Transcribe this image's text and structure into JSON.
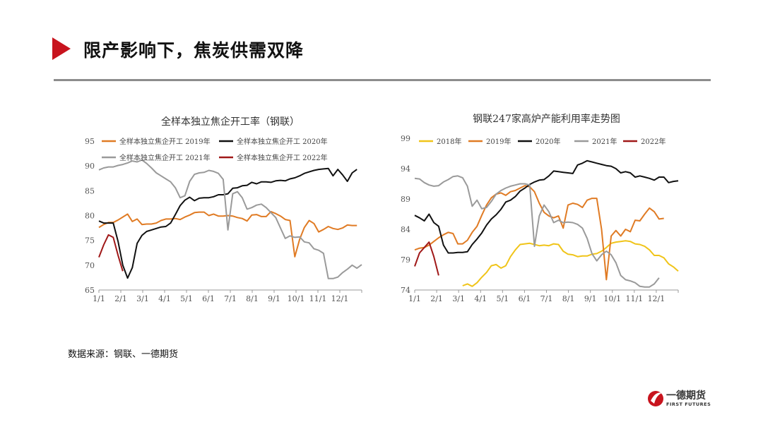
{
  "header": {
    "title": "限产影响下，焦炭供需双降"
  },
  "source_note": "数据来源：钢联、一德期货",
  "logo": {
    "name": "一德期货",
    "name_en": "FIRST FUTURES"
  },
  "colors": {
    "accent": "#c8141e"
  },
  "chart_data": [
    {
      "type": "line",
      "title": "全样本独立焦企开工率（钢联）",
      "ylim": [
        65,
        95
      ],
      "yticks": [
        65,
        70,
        75,
        80,
        85,
        90,
        95
      ],
      "xticks": [
        "1/1",
        "2/1",
        "3/1",
        "4/1",
        "5/1",
        "6/1",
        "7/1",
        "8/1",
        "9/1",
        "10/1",
        "11/1",
        "12/1"
      ],
      "grid": false,
      "legend": "top",
      "series": [
        {
          "name": "全样本独立焦企开工  2019年",
          "color": "#e07b24",
          "values": [
            77.6,
            78.2,
            78.6,
            78.6,
            79.1,
            79.7,
            80.3,
            78.8,
            79.3,
            78.2,
            78.3,
            78.3,
            78.5,
            79.0,
            79.3,
            79.3,
            79.4,
            79.2,
            79.7,
            80.1,
            80.6,
            80.7,
            80.7,
            80.0,
            80.3,
            79.9,
            79.9,
            80.0,
            79.9,
            79.6,
            79.4,
            78.9,
            80.1,
            80.2,
            79.8,
            79.8,
            80.8,
            80.4,
            79.9,
            79.2,
            79.0,
            71.7,
            75.2,
            77.6,
            79.0,
            78.4,
            76.7,
            77.2,
            77.8,
            77.4,
            77.2,
            77.5,
            78.1,
            78.0,
            78.0
          ]
        },
        {
          "name": "全样本独立焦企开工  2020年",
          "color": "#111111",
          "values": [
            78.9,
            78.5,
            78.5,
            78.5,
            74.8,
            70.0,
            67.4,
            69.5,
            74.4,
            76.0,
            76.8,
            77.1,
            77.4,
            77.7,
            77.8,
            78.5,
            80.2,
            82.0,
            83.1,
            83.7,
            83.0,
            83.5,
            83.6,
            83.6,
            83.8,
            84.2,
            84.2,
            84.4,
            85.5,
            85.6,
            86.0,
            86.1,
            86.7,
            86.4,
            86.8,
            86.8,
            86.7,
            87.0,
            87.1,
            87.0,
            87.4,
            87.6,
            88.0,
            88.5,
            88.8,
            89.1,
            89.3,
            89.4,
            89.5,
            88.0,
            89.3,
            88.2,
            86.9,
            88.6,
            89.3
          ]
        },
        {
          "name": "全样本独立焦企开工  2021年",
          "color": "#9a9a9a",
          "values": [
            89.2,
            89.6,
            89.8,
            89.8,
            90.1,
            90.3,
            90.6,
            91.0,
            90.8,
            91.2,
            90.5,
            89.6,
            88.6,
            88.0,
            87.4,
            86.8,
            85.6,
            83.6,
            84.0,
            86.9,
            88.3,
            88.6,
            88.7,
            89.1,
            88.9,
            88.5,
            87.3,
            77.1,
            84.4,
            84.8,
            83.6,
            81.3,
            81.6,
            82.1,
            82.3,
            81.6,
            80.6,
            79.6,
            77.5,
            75.4,
            75.9,
            75.6,
            75.7,
            74.7,
            74.5,
            73.3,
            73.0,
            72.4,
            67.3,
            67.3,
            67.6,
            68.5,
            69.2,
            70.0,
            69.4,
            70.1
          ]
        },
        {
          "name": "全样本独立焦企开工  2022年",
          "color": "#a01818",
          "values": [
            71.6,
            74.1,
            76.1,
            75.6,
            72.0,
            68.8
          ]
        }
      ]
    },
    {
      "type": "line",
      "title": "钢联247家高炉产能利用率走势图",
      "ylim": [
        74,
        99
      ],
      "yticks": [
        74,
        79,
        84,
        89,
        94,
        99
      ],
      "xticks": [
        "1/1",
        "2/1",
        "3/1",
        "4/1",
        "5/1",
        "6/1",
        "7/1",
        "8/1",
        "9/1",
        "10/1",
        "11/1",
        "12/1"
      ],
      "grid": false,
      "legend": "top",
      "series": [
        {
          "name": "2018年",
          "color": "#f0c419",
          "values": [
            null,
            null,
            null,
            null,
            null,
            null,
            null,
            null,
            null,
            null,
            74.7,
            75.0,
            74.6,
            75.2,
            76.1,
            76.9,
            78.0,
            78.2,
            77.6,
            78.0,
            79.5,
            80.6,
            81.5,
            81.6,
            81.7,
            81.5,
            81.3,
            81.4,
            81.3,
            81.6,
            81.5,
            80.4,
            79.9,
            79.8,
            79.5,
            79.6,
            79.6,
            79.9,
            80.0,
            80.4,
            81.0,
            81.7,
            81.9,
            82.0,
            82.1,
            82.0,
            81.6,
            81.5,
            81.2,
            80.6,
            79.7,
            79.7,
            79.3,
            78.3,
            77.8,
            77.1
          ]
        },
        {
          "name": "2019年",
          "color": "#e07b24",
          "values": [
            80.6,
            80.9,
            81.0,
            81.4,
            82.0,
            82.6,
            83.1,
            83.5,
            83.3,
            81.6,
            81.6,
            82.2,
            83.5,
            84.5,
            86.3,
            88.0,
            89.2,
            89.8,
            90.0,
            89.6,
            90.2,
            90.4,
            90.8,
            91.2,
            91.0,
            90.2,
            88.3,
            86.8,
            86.2,
            85.9,
            86.2,
            84.2,
            88.0,
            88.3,
            88.1,
            87.6,
            88.8,
            89.1,
            89.1,
            84.0,
            75.7,
            82.9,
            83.8,
            82.9,
            84.0,
            83.6,
            85.5,
            85.4,
            86.5,
            87.5,
            86.9,
            85.7,
            85.8
          ]
        },
        {
          "name": "2020年",
          "color": "#111111",
          "values": [
            86.3,
            85.9,
            85.4,
            86.5,
            85.1,
            84.5,
            81.4,
            80.1,
            80.1,
            80.2,
            80.2,
            80.3,
            81.5,
            82.4,
            83.4,
            84.7,
            85.7,
            86.4,
            87.3,
            88.5,
            88.8,
            89.4,
            90.3,
            90.8,
            91.4,
            91.8,
            92.1,
            92.2,
            92.8,
            93.6,
            93.5,
            93.4,
            93.3,
            93.2,
            94.6,
            94.9,
            95.3,
            95.1,
            94.9,
            94.7,
            94.5,
            94.4,
            94.0,
            93.3,
            93.5,
            93.3,
            92.6,
            92.8,
            92.6,
            92.4,
            92.1,
            92.6,
            92.6,
            91.7,
            91.9,
            92.0
          ]
        },
        {
          "name": "2021年",
          "color": "#9a9a9a",
          "values": [
            92.4,
            92.3,
            91.7,
            91.3,
            91.1,
            91.2,
            91.8,
            92.2,
            92.7,
            92.8,
            92.5,
            91.1,
            87.8,
            88.8,
            87.4,
            87.6,
            88.6,
            89.8,
            90.4,
            90.8,
            91.1,
            91.3,
            91.5,
            91.5,
            91.3,
            81.2,
            86.2,
            88.0,
            86.9,
            85.1,
            85.5,
            85.1,
            85.2,
            85.1,
            84.8,
            84.2,
            82.5,
            80.0,
            78.8,
            79.8,
            80.4,
            79.8,
            78.5,
            76.4,
            75.7,
            75.5,
            75.2,
            74.6,
            74.5,
            74.5,
            75.0,
            76.0
          ]
        },
        {
          "name": "2022年",
          "color": "#a01818",
          "values": [
            77.9,
            80.1,
            81.0,
            81.9,
            79.5,
            76.4
          ]
        }
      ]
    }
  ]
}
